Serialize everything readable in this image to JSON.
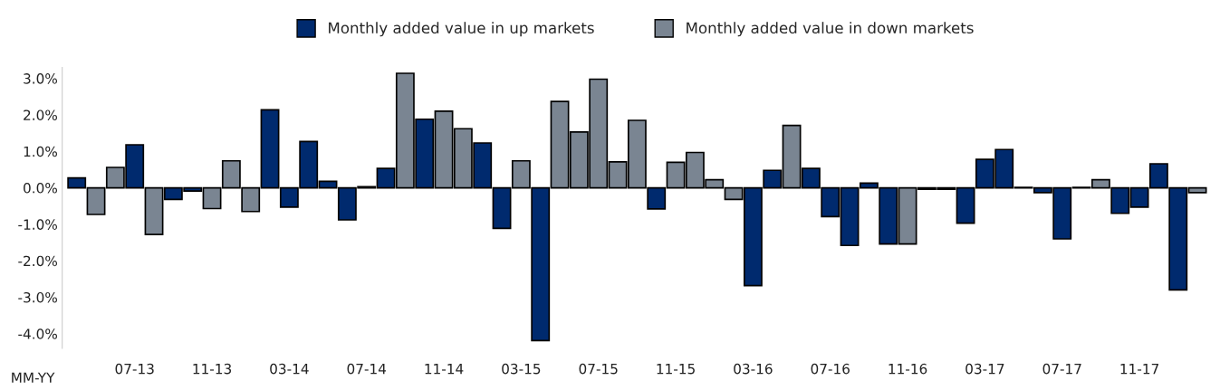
{
  "chart_data": {
    "type": "bar",
    "xlabel": "MM-YY",
    "categories": [
      null,
      null,
      null,
      "07-13",
      null,
      null,
      null,
      "11-13",
      null,
      null,
      null,
      "03-14",
      null,
      null,
      null,
      "07-14",
      null,
      null,
      null,
      "11-14",
      null,
      null,
      null,
      "03-15",
      null,
      null,
      null,
      "07-15",
      null,
      null,
      null,
      "11-15",
      null,
      null,
      null,
      "03-16",
      null,
      null,
      null,
      "07-16",
      null,
      null,
      null,
      "11-16",
      null,
      null,
      null,
      "03-17",
      null,
      null,
      null,
      "07-17",
      null,
      null,
      null,
      "11-17",
      null,
      null,
      null
    ],
    "series": [
      {
        "name": "Monthly added value in up markets",
        "color": "#002a6e",
        "values": [
          0.27,
          null,
          null,
          1.18,
          null,
          -0.32,
          -0.09,
          null,
          null,
          null,
          2.14,
          -0.53,
          1.27,
          0.18,
          -0.88,
          0.03,
          0.53,
          null,
          1.88,
          null,
          null,
          1.23,
          -1.11,
          null,
          -4.19,
          null,
          null,
          null,
          null,
          null,
          -0.58,
          null,
          null,
          null,
          null,
          -2.68,
          0.48,
          null,
          0.53,
          -0.79,
          -1.58,
          0.13,
          -1.54,
          null,
          -0.04,
          -0.04,
          -0.97,
          0.78,
          1.05,
          0.01,
          -0.13,
          -1.4,
          0.01,
          null,
          -0.7,
          -0.53,
          0.66,
          -2.8,
          null
        ]
      },
      {
        "name": "Monthly added value in down markets",
        "color": "#7a8592",
        "values": [
          null,
          -0.73,
          0.56,
          null,
          -1.28,
          null,
          null,
          -0.57,
          0.74,
          -0.65,
          null,
          null,
          null,
          null,
          null,
          null,
          null,
          3.14,
          null,
          2.1,
          1.62,
          null,
          null,
          0.74,
          null,
          2.37,
          1.53,
          2.98,
          0.71,
          1.85,
          null,
          0.7,
          0.97,
          0.22,
          -0.32,
          null,
          null,
          1.71,
          null,
          null,
          null,
          null,
          null,
          -1.54,
          null,
          null,
          null,
          null,
          null,
          null,
          null,
          null,
          null,
          0.22,
          null,
          null,
          null,
          null,
          -0.13
        ]
      }
    ],
    "ylim": [
      -4.4,
      3.3
    ],
    "yticks": [
      {
        "value": -4,
        "label": "-4.0%"
      },
      {
        "value": -3,
        "label": "-3.0%"
      },
      {
        "value": -2,
        "label": "-2.0%"
      },
      {
        "value": -1,
        "label": "-1.0%"
      },
      {
        "value": 0,
        "label": "0.0%"
      },
      {
        "value": 1,
        "label": "1.0%"
      },
      {
        "value": 2,
        "label": "2.0%"
      },
      {
        "value": 3,
        "label": "3.0%"
      }
    ],
    "legend": "top",
    "grid": false
  }
}
